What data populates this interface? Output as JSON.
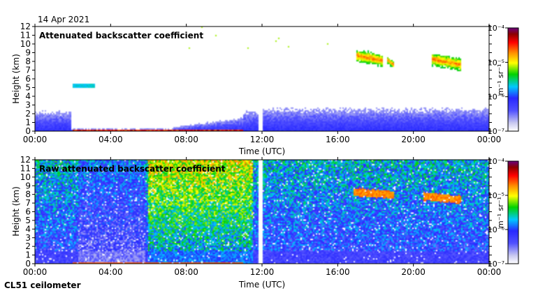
{
  "date": "14 Apr 2021",
  "instrument": "CL51 ceilometer",
  "colorbar_unit": "m⁻¹ sr⁻¹",
  "colors": {
    "scale": [
      "#ffffff",
      "#c8c8f0",
      "#2828ff",
      "#00c8ff",
      "#00d200",
      "#ffff00",
      "#ff8c00",
      "#ff0000",
      "#8b0000",
      "#6a0080"
    ],
    "axis": "#000000"
  },
  "chart_data": [
    {
      "type": "heatmap",
      "title": "Attenuated backscatter coefficient",
      "xlabel": "Time (UTC)",
      "ylabel": "Height (km)",
      "xlim": [
        0,
        24
      ],
      "ylim": [
        0,
        12
      ],
      "x_ticks": [
        "00:00",
        "04:00",
        "08:00",
        "12:00",
        "16:00",
        "20:00",
        "00:00"
      ],
      "x_tick_values": [
        0,
        4,
        8,
        12,
        16,
        20,
        24
      ],
      "y_ticks": [
        0,
        1,
        2,
        3,
        4,
        5,
        6,
        7,
        8,
        9,
        10,
        11,
        12
      ],
      "colorbar": {
        "ticks": [
          "10⁻⁷",
          "10⁻⁶",
          "10⁻⁵",
          "10⁻⁴"
        ],
        "scale": "log",
        "range": [
          1e-07,
          0.0001
        ]
      },
      "features": {
        "boundary_layer": {
          "description": "boundary layer signal",
          "t_start": 0,
          "t_end": 24,
          "top_km_early": 2.1,
          "top_km_late": 2.4
        },
        "low_layer_gap": [
          1.9,
          7.3
        ],
        "data_gap": [
          11.85,
          12.0
        ],
        "cirrus": [
          {
            "t": [
              17.0,
              18.4
            ],
            "h": [
              7.7,
              9.2
            ],
            "peak_log": -5.1
          },
          {
            "t": [
              18.6,
              19.0
            ],
            "h": [
              7.6,
              8.5
            ],
            "peak_log": -5.3
          },
          {
            "t": [
              21.0,
              22.5
            ],
            "h": [
              7.2,
              8.8
            ],
            "peak_log": -5.1
          }
        ],
        "aerosol_layer": {
          "t": [
            2.0,
            3.2
          ],
          "h": [
            5.0,
            5.4
          ],
          "peak_log": -6.1
        }
      }
    },
    {
      "type": "heatmap",
      "title": "Raw attenuated backscatter coefficient",
      "xlabel": "Time (UTC)",
      "ylabel": "Height (km)",
      "xlim": [
        0,
        24
      ],
      "ylim": [
        0,
        12
      ],
      "x_ticks": [
        "00:00",
        "04:00",
        "08:00",
        "12:00",
        "16:00",
        "20:00",
        "00:00"
      ],
      "x_tick_values": [
        0,
        4,
        8,
        12,
        16,
        20,
        24
      ],
      "y_ticks": [
        0,
        1,
        2,
        3,
        4,
        5,
        6,
        7,
        8,
        9,
        10,
        11,
        12
      ],
      "colorbar": {
        "ticks": [
          "10⁻⁷",
          "10⁻⁶",
          "10⁻⁵",
          "10⁻⁴"
        ],
        "scale": "log",
        "range": [
          1e-07,
          0.0001
        ]
      },
      "features": {
        "noisy_background": true,
        "daytime_noise_peak": [
          6.0,
          11.5
        ],
        "data_gap": [
          11.85,
          12.0
        ],
        "cirrus": [
          {
            "t": [
              16.8,
              19.0
            ],
            "h": [
              7.8,
              8.8
            ]
          },
          {
            "t": [
              20.5,
              22.5
            ],
            "h": [
              7.3,
              8.3
            ]
          }
        ]
      }
    }
  ]
}
